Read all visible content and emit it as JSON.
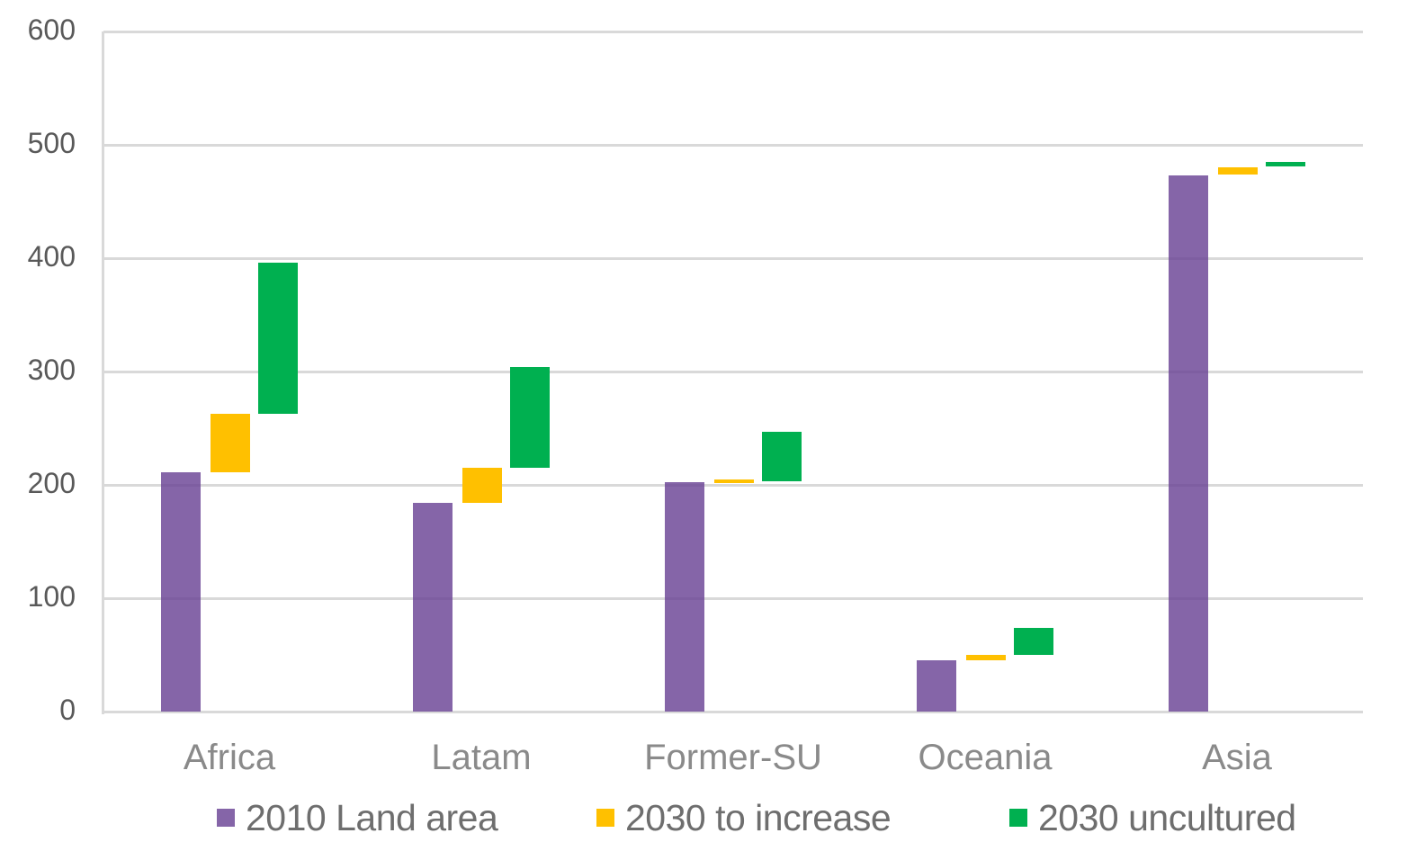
{
  "chart_data": {
    "type": "bar",
    "subtype": "waterfall-floating-columns",
    "title": "",
    "categories": [
      "Africa",
      "Latam",
      "Former-SU",
      "Oceania",
      "Asia"
    ],
    "series": [
      {
        "name": "2010 Land area",
        "color": "#6A4395",
        "opacity": 0.82,
        "effective_color": "#8566A9",
        "segments": [
          [
            0,
            211
          ],
          [
            0,
            184
          ],
          [
            0,
            202
          ],
          [
            0,
            45
          ],
          [
            0,
            473
          ]
        ]
      },
      {
        "name": "2030 to increase",
        "color": "#FFC000",
        "opacity": 1,
        "effective_color": "#FFC000",
        "segments": [
          [
            211,
            263
          ],
          [
            184,
            215
          ],
          [
            202,
            205
          ],
          [
            45,
            50
          ],
          [
            474,
            480
          ]
        ]
      },
      {
        "name": "2030 uncultured",
        "color": "#00B050",
        "opacity": 1,
        "effective_color": "#00B050",
        "segments": [
          [
            263,
            396
          ],
          [
            215,
            304
          ],
          [
            203,
            247
          ],
          [
            50,
            74
          ],
          [
            481,
            485
          ]
        ]
      }
    ],
    "ylim": [
      0,
      600
    ],
    "yticks": [
      0,
      100,
      200,
      300,
      400,
      500,
      600
    ],
    "grid": "horizontal",
    "gridline_color": "#D9D9D9",
    "axis_line_color": "#D9D9D9",
    "legend_position": "bottom",
    "axis_text_color": "#595959",
    "category_text_color": "#8A8A8A",
    "legend_text_color": "#6E6E6E"
  }
}
